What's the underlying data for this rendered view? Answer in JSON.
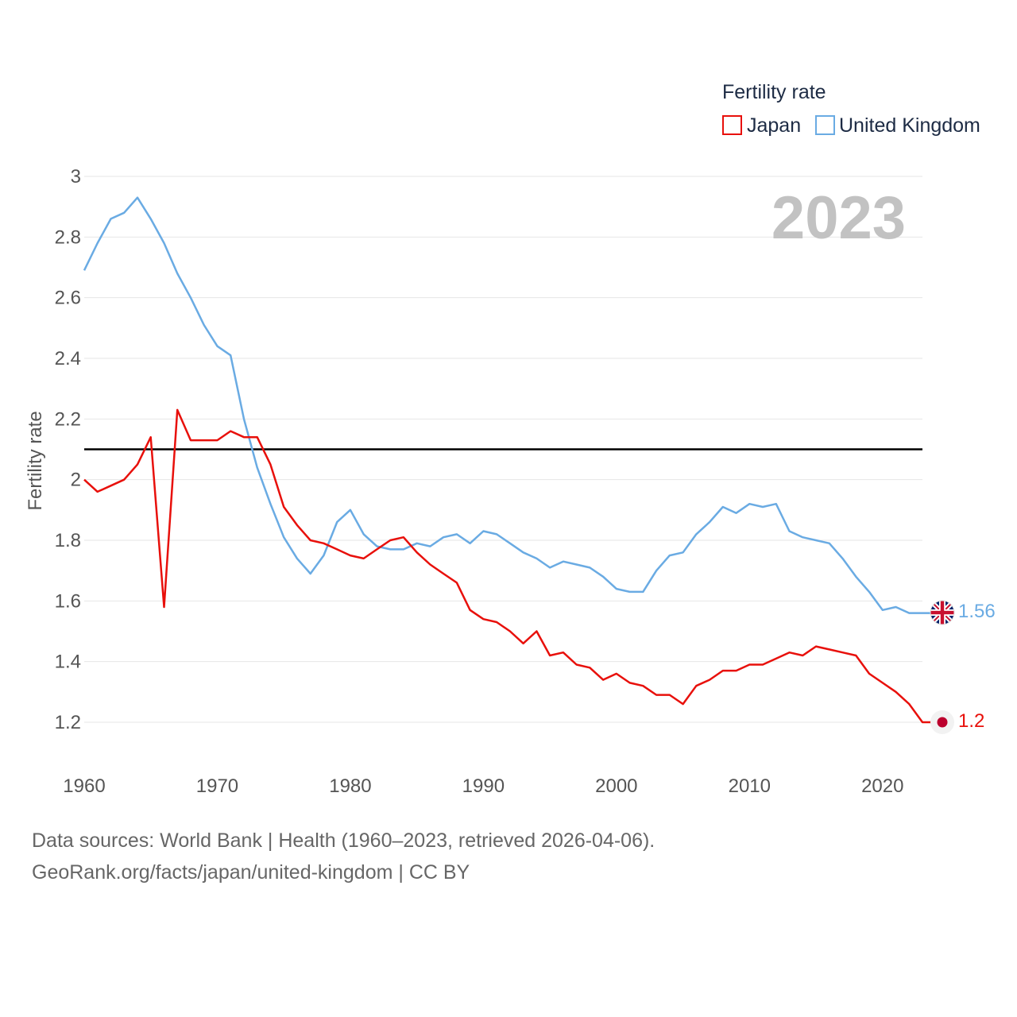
{
  "chart_data": {
    "type": "line",
    "title": "Fertility rate",
    "ylabel": "Fertility rate",
    "xlabel": "",
    "current_year": "2023",
    "xlim": [
      1960,
      2023
    ],
    "ylim": [
      1.05,
      3.0
    ],
    "yticks": [
      1.2,
      1.4,
      1.6,
      1.8,
      2,
      2.2,
      2.4,
      2.6,
      2.8,
      3
    ],
    "xticks": [
      1960,
      1970,
      1980,
      1990,
      2000,
      2010,
      2020
    ],
    "reference_line": 2.1,
    "x": [
      1960,
      1961,
      1962,
      1963,
      1964,
      1965,
      1966,
      1967,
      1968,
      1969,
      1970,
      1971,
      1972,
      1973,
      1974,
      1975,
      1976,
      1977,
      1978,
      1979,
      1980,
      1981,
      1982,
      1983,
      1984,
      1985,
      1986,
      1987,
      1988,
      1989,
      1990,
      1991,
      1992,
      1993,
      1994,
      1995,
      1996,
      1997,
      1998,
      1999,
      2000,
      2001,
      2002,
      2003,
      2004,
      2005,
      2006,
      2007,
      2008,
      2009,
      2010,
      2011,
      2012,
      2013,
      2014,
      2015,
      2016,
      2017,
      2018,
      2019,
      2020,
      2021,
      2022,
      2023
    ],
    "series": [
      {
        "name": "Japan",
        "color": "#e8100b",
        "end_label": "1.2",
        "values": [
          2.0,
          1.96,
          1.98,
          2.0,
          2.05,
          2.14,
          1.58,
          2.23,
          2.13,
          2.13,
          2.13,
          2.16,
          2.14,
          2.14,
          2.05,
          1.91,
          1.85,
          1.8,
          1.79,
          1.77,
          1.75,
          1.74,
          1.77,
          1.8,
          1.81,
          1.76,
          1.72,
          1.69,
          1.66,
          1.57,
          1.54,
          1.53,
          1.5,
          1.46,
          1.5,
          1.42,
          1.43,
          1.39,
          1.38,
          1.34,
          1.36,
          1.33,
          1.32,
          1.29,
          1.29,
          1.26,
          1.32,
          1.34,
          1.37,
          1.37,
          1.39,
          1.39,
          1.41,
          1.43,
          1.42,
          1.45,
          1.44,
          1.43,
          1.42,
          1.36,
          1.33,
          1.3,
          1.26,
          1.2
        ]
      },
      {
        "name": "United Kingdom",
        "color": "#6aabe3",
        "end_label": "1.56",
        "values": [
          2.69,
          2.78,
          2.86,
          2.88,
          2.93,
          2.86,
          2.78,
          2.68,
          2.6,
          2.51,
          2.44,
          2.41,
          2.2,
          2.04,
          1.92,
          1.81,
          1.74,
          1.69,
          1.75,
          1.86,
          1.9,
          1.82,
          1.78,
          1.77,
          1.77,
          1.79,
          1.78,
          1.81,
          1.82,
          1.79,
          1.83,
          1.82,
          1.79,
          1.76,
          1.74,
          1.71,
          1.73,
          1.72,
          1.71,
          1.68,
          1.64,
          1.63,
          1.63,
          1.7,
          1.75,
          1.76,
          1.82,
          1.86,
          1.91,
          1.89,
          1.92,
          1.91,
          1.92,
          1.83,
          1.81,
          1.8,
          1.79,
          1.74,
          1.68,
          1.63,
          1.57,
          1.58,
          1.56,
          1.56
        ]
      }
    ]
  },
  "footer": {
    "line1": "Data sources: World Bank | Health (1960–2023, retrieved 2026-04-06).",
    "line2": "GeoRank.org/facts/japan/united-kingdom | CC BY"
  }
}
